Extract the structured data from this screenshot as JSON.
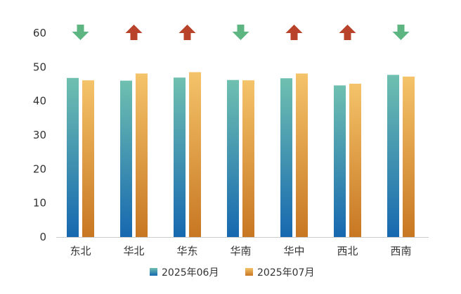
{
  "chart_data": {
    "type": "bar",
    "categories": [
      "东北",
      "华北",
      "华东",
      "华南",
      "华中",
      "西北",
      "西南"
    ],
    "series": [
      {
        "name": "2025年06月",
        "values": [
          46.8,
          46.0,
          46.9,
          46.2,
          46.7,
          44.6,
          47.7
        ],
        "color_top": "#6fc0b0",
        "color_bottom": "#1668b0"
      },
      {
        "name": "2025年07月",
        "values": [
          46.1,
          48.1,
          48.5,
          46.1,
          48.1,
          45.1,
          47.2
        ],
        "color_top": "#f4c36a",
        "color_bottom": "#c87722"
      }
    ],
    "trend": [
      "down",
      "up",
      "up",
      "down",
      "up",
      "up",
      "down"
    ],
    "trend_colors": {
      "up": "#b8432a",
      "down": "#5db582"
    },
    "ylim": [
      0,
      60
    ],
    "yticks": [
      0,
      10,
      20,
      30,
      40,
      50,
      60
    ],
    "grid": false,
    "legend_position": "bottom",
    "title": "",
    "xlabel": "",
    "ylabel": ""
  }
}
